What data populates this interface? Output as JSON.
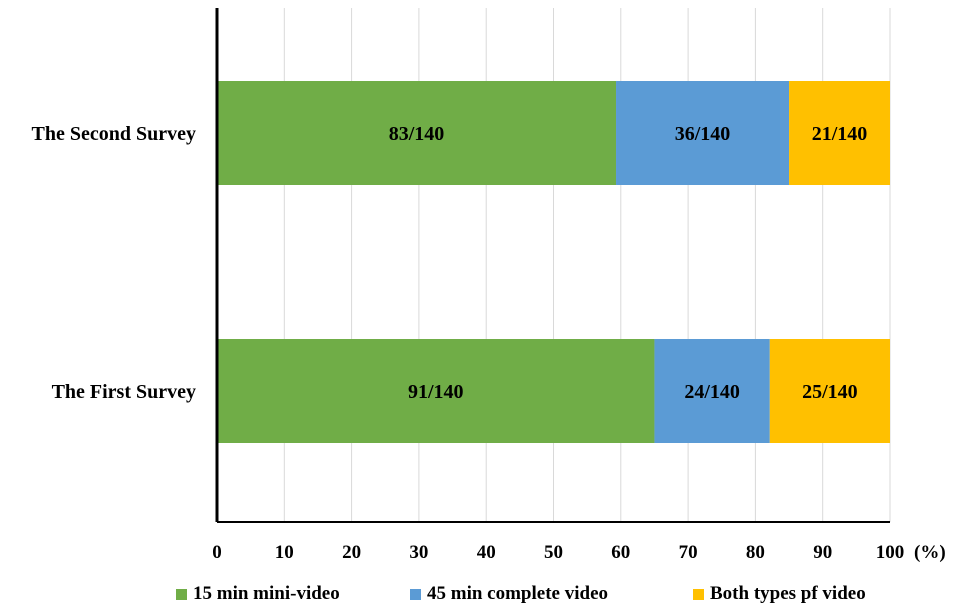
{
  "chart_data": {
    "type": "bar",
    "orientation": "horizontal",
    "stacked": true,
    "categories": [
      "The Second Survey",
      "The First Survey"
    ],
    "series": [
      {
        "name": "15 min mini-video",
        "color": "#70AD47",
        "values": [
          59.29,
          65.0
        ],
        "labels": [
          "83/140",
          "91/140"
        ]
      },
      {
        "name": "45 min complete video",
        "color": "#5B9BD5",
        "values": [
          25.71,
          17.14
        ],
        "labels": [
          "36/140",
          "24/140"
        ]
      },
      {
        "name": "Both types pf video",
        "color": "#FFC000",
        "values": [
          15.0,
          17.86
        ],
        "labels": [
          "21/140",
          "25/140"
        ]
      }
    ],
    "xlim": [
      0,
      100
    ],
    "xticks": [
      "0",
      "10",
      "20",
      "30",
      "40",
      "50",
      "60",
      "70",
      "80",
      "90",
      "100"
    ],
    "x_unit_label": "(%)",
    "grid": true,
    "legend": "bottom"
  }
}
